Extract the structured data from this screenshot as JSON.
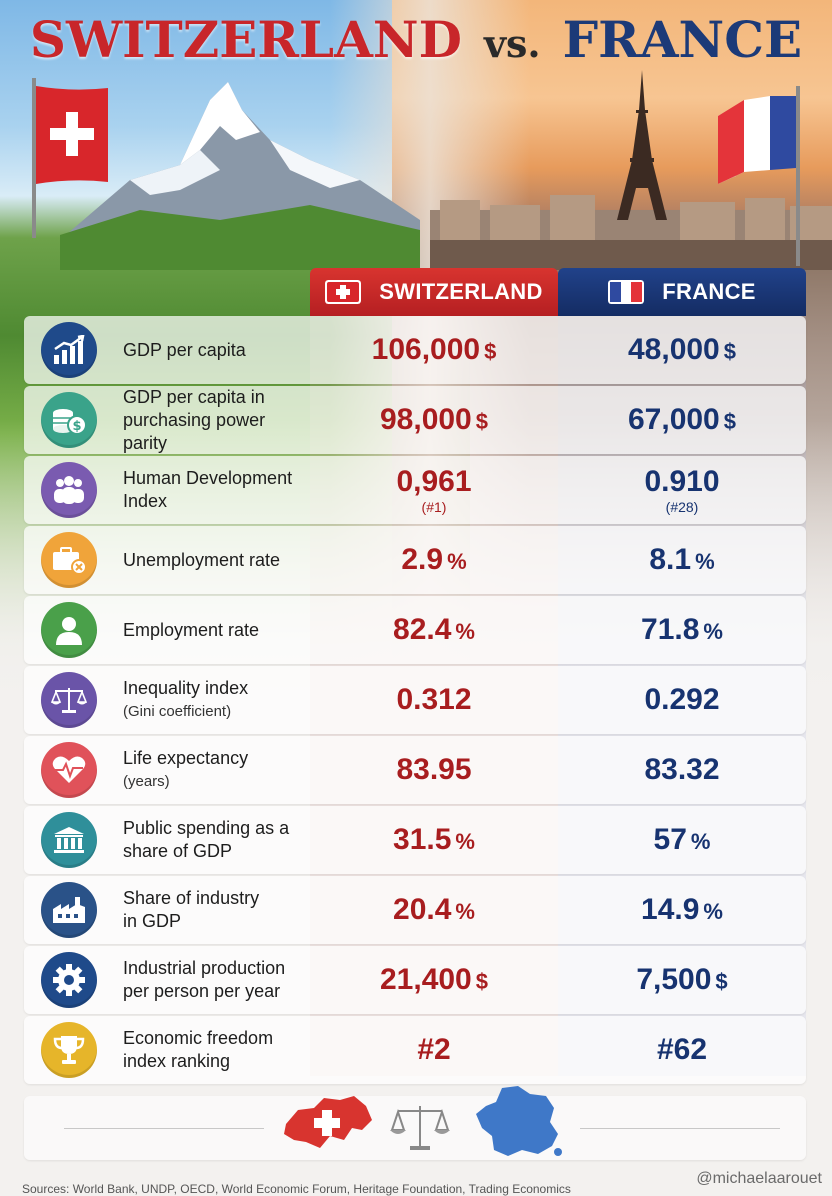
{
  "title": {
    "left": "SWITZERLAND",
    "vs": "VS.",
    "right": "FRANCE"
  },
  "columns": {
    "switzerland": "SWITZERLAND",
    "france": "FRANCE"
  },
  "colors": {
    "swiss_red": "#c8262a",
    "france_blue": "#1c3a78"
  },
  "rows": [
    {
      "icon": "growth-chart-icon",
      "icon_color": "#1f4a8a",
      "label": "GDP per capita",
      "sub": "",
      "ch": "106,000",
      "ch_unit": "$",
      "ch_rank": "",
      "fr": "48,000",
      "fr_unit": "$",
      "fr_rank": ""
    },
    {
      "icon": "coins-dollar-icon",
      "icon_color": "#3aa38a",
      "label": "GDP per capita in",
      "sub": "purchasing power parity",
      "sub_large": true,
      "ch": "98,000",
      "ch_unit": "$",
      "ch_rank": "",
      "fr": "67,000",
      "fr_unit": "$",
      "fr_rank": ""
    },
    {
      "icon": "people-group-icon",
      "icon_color": "#7a5bb0",
      "label": "Human Development",
      "sub": "Index",
      "sub_large": true,
      "ch": "0,961",
      "ch_unit": "",
      "ch_rank": "(#1)",
      "fr": "0.910",
      "fr_unit": "",
      "fr_rank": "(#28)"
    },
    {
      "icon": "briefcase-x-icon",
      "icon_color": "#f0a43a",
      "label": "Unemployment rate",
      "sub": "",
      "ch": "2.9",
      "ch_unit": "%",
      "ch_rank": "",
      "fr": "8.1",
      "fr_unit": "%",
      "fr_rank": ""
    },
    {
      "icon": "person-icon",
      "icon_color": "#4aa04a",
      "label": "Employment rate",
      "sub": "",
      "ch": "82.4",
      "ch_unit": "%",
      "ch_rank": "",
      "fr": "71.8",
      "fr_unit": "%",
      "fr_rank": ""
    },
    {
      "icon": "balance-scale-icon",
      "icon_color": "#6a54a8",
      "label": "Inequality index",
      "sub": "(Gini coefficient)",
      "ch": "0.312",
      "ch_unit": "",
      "ch_rank": "",
      "fr": "0.292",
      "fr_unit": "",
      "fr_rank": ""
    },
    {
      "icon": "heartbeat-icon",
      "icon_color": "#e0525a",
      "label": "Life expectancy",
      "sub": "(years)",
      "ch": "83.95",
      "ch_unit": "",
      "ch_rank": "",
      "fr": "83.32",
      "fr_unit": "",
      "fr_rank": ""
    },
    {
      "icon": "government-building-icon",
      "icon_color": "#2f8f9a",
      "label": "Public spending as a",
      "sub": "share of GDP",
      "sub_large": true,
      "ch": "31.5",
      "ch_unit": "%",
      "ch_rank": "",
      "fr": "57",
      "fr_unit": "%",
      "fr_rank": ""
    },
    {
      "icon": "factory-icon",
      "icon_color": "#2a5288",
      "label": "Share of industry",
      "sub": "in GDP",
      "sub_large": true,
      "ch": "20.4",
      "ch_unit": "%",
      "ch_rank": "",
      "fr": "14.9",
      "fr_unit": "%",
      "fr_rank": ""
    },
    {
      "icon": "gear-icon",
      "icon_color": "#1f4a8a",
      "label": "Industrial production",
      "sub": "per person per year",
      "sub_large": true,
      "ch": "21,400",
      "ch_unit": "$",
      "ch_rank": "",
      "fr": "7,500",
      "fr_unit": "$",
      "fr_rank": ""
    },
    {
      "icon": "trophy-icon",
      "icon_color": "#e6b52a",
      "label": "Economic freedom",
      "sub": "index ranking",
      "sub_large": true,
      "ch": "#2",
      "ch_unit": "",
      "ch_rank": "",
      "fr": "#62",
      "fr_unit": "",
      "fr_rank": ""
    }
  ],
  "footer": {
    "icons": [
      "switzerland-map-icon",
      "balance-scale-icon",
      "france-map-icon"
    ],
    "handle": "@michaelaarouet",
    "sources": "Sources: World Bank, UNDP, OECD, World Economic Forum, Heritage Foundation, Trading Economics"
  }
}
